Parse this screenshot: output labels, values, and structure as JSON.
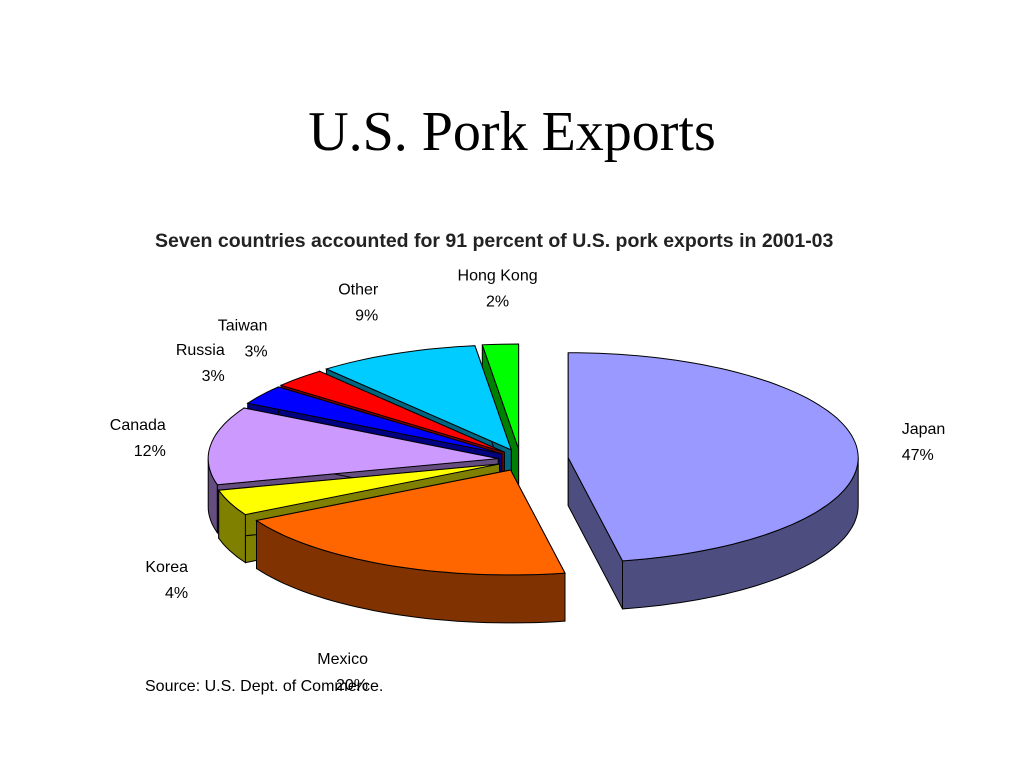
{
  "slide_title": "U.S. Pork Exports",
  "chart_data": {
    "type": "pie3d",
    "title": "Seven countries accounted for 91 percent of U.S. pork exports in 2001-03",
    "categories": [
      "Japan",
      "Mexico",
      "Korea",
      "Canada",
      "Russia",
      "Taiwan",
      "Other",
      "Hong Kong"
    ],
    "values": [
      47,
      20,
      4,
      12,
      3,
      3,
      9,
      2
    ],
    "value_labels": [
      "47%",
      "20%",
      "4%",
      "12%",
      "3%",
      "3%",
      "9%",
      "2%"
    ],
    "colors": [
      "#9999ff",
      "#ff6600",
      "#ffff00",
      "#cc99ff",
      "#0000ff",
      "#ff0000",
      "#00ccff",
      "#00ff00"
    ],
    "source": "Source: U.S. Dept. of Commerce."
  }
}
